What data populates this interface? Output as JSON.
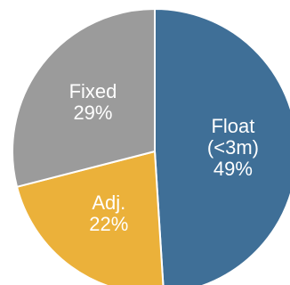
{
  "chart_data": {
    "type": "pie",
    "title": "",
    "slices": [
      {
        "label_lines": [
          "Float",
          "(<3m)"
        ],
        "value": 49,
        "value_label": "49%",
        "color": "#3F6F97"
      },
      {
        "label_lines": [
          "Adj."
        ],
        "value": 22,
        "value_label": "22%",
        "color": "#EBB13A"
      },
      {
        "label_lines": [
          "Fixed"
        ],
        "value": 29,
        "value_label": "29%",
        "color": "#9B9B9B"
      }
    ],
    "start_angle_deg": 0,
    "direction": "clockwise",
    "legend": "none",
    "labels_inside": true,
    "slice_separator_color": "#FFFFFF"
  }
}
